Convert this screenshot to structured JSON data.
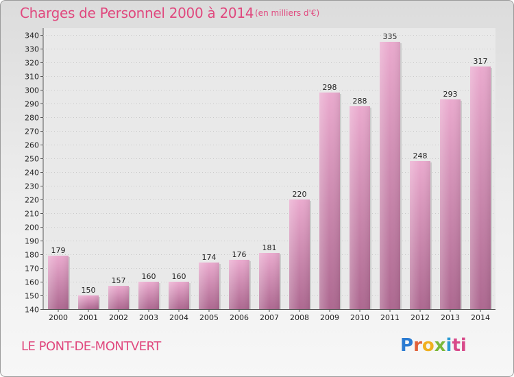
{
  "header": {
    "title": "Charges de Personnel 2000 à 2014",
    "unit": "(en milliers d'€)"
  },
  "footer": {
    "location": "LE PONT-DE-MONTVERT",
    "logo": [
      "P",
      "r",
      "o",
      "x",
      "i",
      "ti"
    ]
  },
  "colors": {
    "title": "#e0487e",
    "bar_top": "#e8a8cc",
    "bar_bottom": "#b06890",
    "plot_bg": "#e6e6e6"
  },
  "chart_data": {
    "type": "bar",
    "categories": [
      "2000",
      "2001",
      "2002",
      "2003",
      "2004",
      "2005",
      "2006",
      "2007",
      "2008",
      "2009",
      "2010",
      "2011",
      "2012",
      "2013",
      "2014"
    ],
    "values": [
      179,
      150,
      157,
      160,
      160,
      174,
      176,
      181,
      220,
      298,
      288,
      335,
      248,
      293,
      317
    ],
    "ylim": [
      140,
      340
    ],
    "ytick_step": 10,
    "grid": true,
    "title": "Charges de Personnel 2000 à 2014",
    "xlabel": "",
    "ylabel": ""
  }
}
